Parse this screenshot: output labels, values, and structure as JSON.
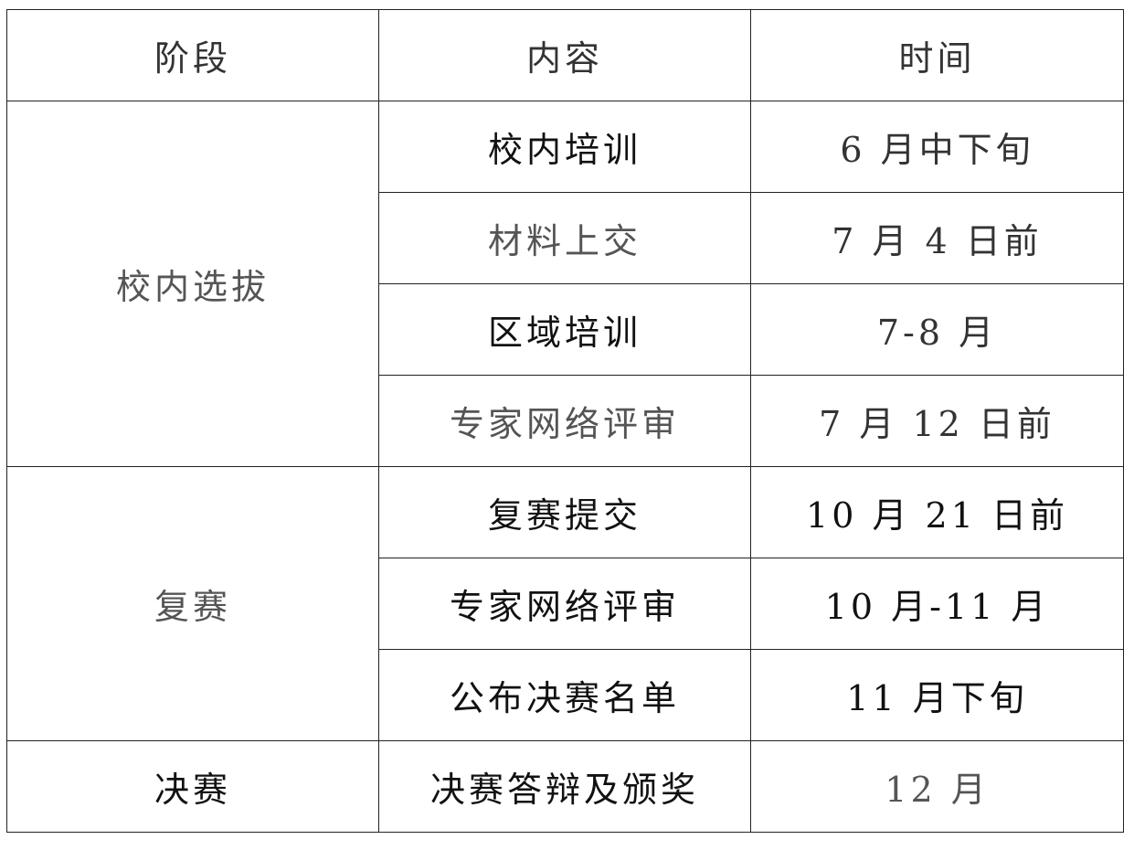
{
  "headers": [
    "阶段",
    "内容",
    "时间"
  ],
  "stages": [
    {
      "name": "校内选拔",
      "rows": [
        {
          "content": "校内培训",
          "time": "6 月中下旬"
        },
        {
          "content": "材料上交",
          "time": "7 月 4 日前"
        },
        {
          "content": "区域培训",
          "time": "7-8 月"
        },
        {
          "content": "专家网络评审",
          "time": "7 月 12 日前"
        }
      ]
    },
    {
      "name": "复赛",
      "rows": [
        {
          "content": "复赛提交",
          "time": "10 月 21 日前"
        },
        {
          "content": "专家网络评审",
          "time": "10 月-11 月"
        },
        {
          "content": "公布决赛名单",
          "time": "11 月下旬"
        }
      ]
    },
    {
      "name": "决赛",
      "rows": [
        {
          "content": "决赛答辩及颁奖",
          "time": "12 月"
        }
      ]
    }
  ]
}
